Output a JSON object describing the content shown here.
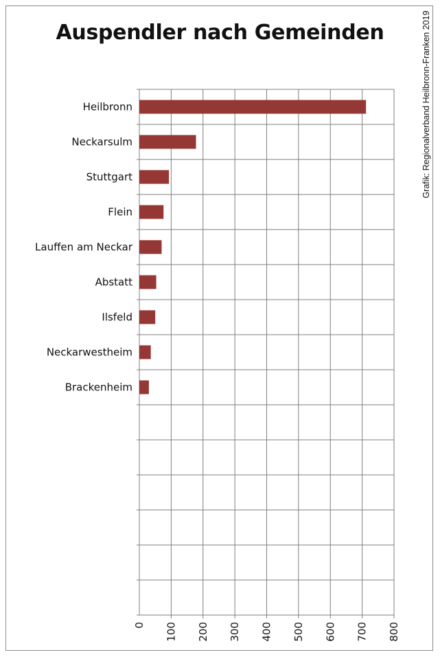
{
  "chart_data": {
    "type": "bar",
    "orientation": "horizontal",
    "title": "Auspendler nach Gemeinden",
    "source_note": "Grafik: Regionalverband Heilbronn-Franken 2019",
    "categories": [
      "Heilbronn",
      "Neckarsulm",
      "Stuttgart",
      "Flein",
      "Lauffen am Neckar",
      "Abstatt",
      "Ilsfeld",
      "Neckarwestheim",
      "Brackenheim"
    ],
    "values": [
      712,
      178,
      93,
      76,
      70,
      53,
      50,
      36,
      30
    ],
    "xlim": [
      0,
      800
    ],
    "x_ticks": [
      "0",
      "100",
      "200",
      "300",
      "400",
      "500",
      "600",
      "700",
      "800"
    ],
    "grid": true,
    "bar_color": "#953735",
    "legend": "none"
  }
}
